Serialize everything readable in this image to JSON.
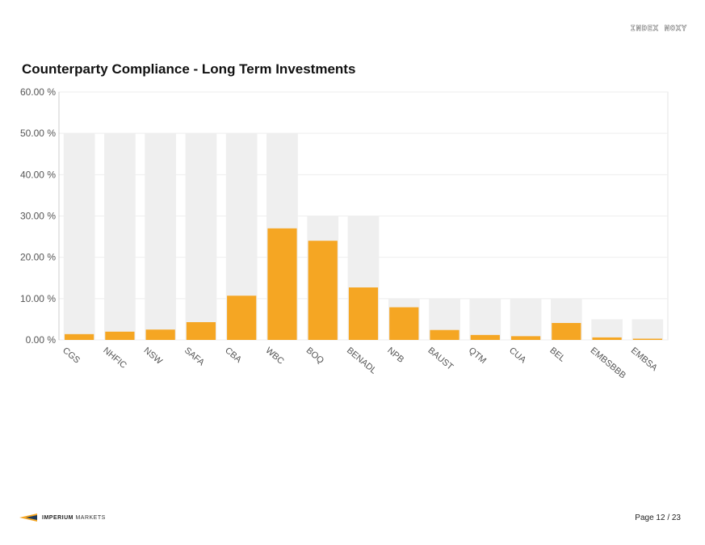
{
  "header": {
    "badge": "INDEX NOXY"
  },
  "footer": {
    "brand_bold": "IMPERIUM",
    "brand_light": "MARKETS",
    "page_label": "Page 12 / 23"
  },
  "colors": {
    "actual": "#f5a623",
    "limit": "#efefef",
    "grid": "#eeeeee",
    "axis_text": "#555555"
  },
  "chart_data": {
    "type": "bar",
    "title": "Counterparty Compliance - Long Term Investments",
    "categories": [
      "CGS",
      "NHFIC",
      "NSW",
      "SAFA",
      "CBA",
      "WBC",
      "BOQ",
      "BENADL",
      "NPB",
      "BAUST",
      "QTM",
      "CUA",
      "BEL",
      "EMBSBBB",
      "EMBSA"
    ],
    "series": [
      {
        "values": [
          50,
          50,
          50,
          50,
          50,
          50,
          30,
          30,
          10,
          10,
          10,
          10,
          10,
          5,
          5
        ]
      },
      {
        "values": [
          1.4,
          2.0,
          2.5,
          4.3,
          10.7,
          27.0,
          24.0,
          12.7,
          7.9,
          2.4,
          1.2,
          0.9,
          4.1,
          0.6,
          0.3
        ]
      }
    ],
    "yticks": [
      "0.00 %",
      "10.00 %",
      "20.00 %",
      "30.00 %",
      "40.00 %",
      "50.00 %",
      "60.00 %"
    ],
    "ylim": [
      0,
      60
    ],
    "grid": true,
    "legend": "none"
  }
}
